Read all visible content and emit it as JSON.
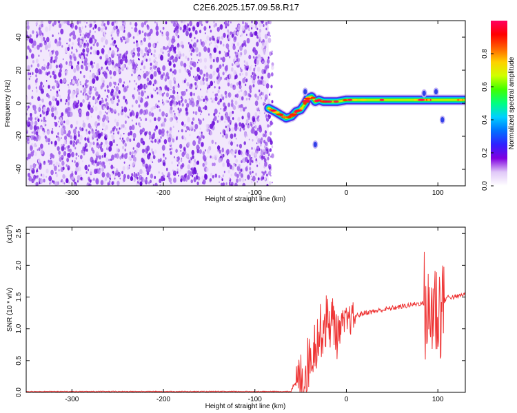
{
  "title": "C2E6.2025.157.09.58.R17",
  "chart_data": [
    {
      "type": "heatmap",
      "xlabel": "Height of straight line (km)",
      "ylabel": "Frequency (Hz)",
      "xlim": [
        -350,
        130
      ],
      "ylim": [
        -50,
        50
      ],
      "xticks": [
        -300,
        -200,
        -100,
        0,
        100
      ],
      "xtick_labels": [
        "-300",
        "-200",
        "-100",
        "0",
        "100"
      ],
      "yticks": [
        -40,
        -20,
        0,
        20,
        40
      ],
      "ytick_labels": [
        "-40",
        "-20",
        "0",
        "20",
        "40"
      ],
      "noise_region_x": [
        -350,
        -85
      ],
      "signal_ridge": [
        {
          "x": -85,
          "y": -3
        },
        {
          "x": -78,
          "y": -5
        },
        {
          "x": -72,
          "y": -7
        },
        {
          "x": -66,
          "y": -9
        },
        {
          "x": -60,
          "y": -8
        },
        {
          "x": -55,
          "y": -5
        },
        {
          "x": -50,
          "y": -4
        },
        {
          "x": -45,
          "y": 0
        },
        {
          "x": -42,
          "y": 3
        },
        {
          "x": -38,
          "y": 4
        },
        {
          "x": -34,
          "y": 1
        },
        {
          "x": -30,
          "y": 2
        },
        {
          "x": -25,
          "y": 1
        },
        {
          "x": -20,
          "y": 1
        },
        {
          "x": -10,
          "y": 1
        },
        {
          "x": 0,
          "y": 2
        },
        {
          "x": 20,
          "y": 2
        },
        {
          "x": 40,
          "y": 2
        },
        {
          "x": 60,
          "y": 2
        },
        {
          "x": 80,
          "y": 2
        },
        {
          "x": 100,
          "y": 2
        },
        {
          "x": 130,
          "y": 2
        }
      ],
      "isolated_blobs": [
        {
          "x": -45,
          "y": 7
        },
        {
          "x": -34,
          "y": -25
        },
        {
          "x": 85,
          "y": 6
        },
        {
          "x": 98,
          "y": 7
        },
        {
          "x": 105,
          "y": -10
        }
      ],
      "colorbar": {
        "label": "Normalized spectral amplitude",
        "range": [
          0,
          1
        ],
        "ticks": [
          0.0,
          0.2,
          0.4,
          0.6,
          0.8
        ],
        "tick_labels": [
          "0.0",
          "0.2",
          "0.4",
          "0.6",
          "0.8"
        ],
        "colormap": [
          "#ffffff",
          "#e0c8f8",
          "#8000e0",
          "#3020ff",
          "#0070ff",
          "#00d0ff",
          "#00ff80",
          "#40ff00",
          "#d0ff00",
          "#ffd000",
          "#ff6000",
          "#ff0000",
          "#ff0060"
        ]
      },
      "grid": false
    },
    {
      "type": "line",
      "xlabel": "Height of straight line (km)",
      "ylabel": "SNR (10 * v/v)",
      "y_multiplier_label": "(x10",
      "y_multiplier_exp": "4",
      "y_multiplier_close": ")",
      "xlim": [
        -350,
        130
      ],
      "ylim": [
        0,
        2.6
      ],
      "xticks": [
        -300,
        -200,
        -100,
        0,
        100
      ],
      "xtick_labels": [
        "-300",
        "-200",
        "-100",
        "0",
        "100"
      ],
      "yticks": [
        0.0,
        0.5,
        1.0,
        1.5,
        2.0,
        2.5
      ],
      "ytick_labels": [
        "0.0",
        "0.5",
        "1.0",
        "1.5",
        "2.0",
        "2.5"
      ],
      "series": [
        {
          "color": "#ee3333",
          "points": [
            {
              "x": -350,
              "y": 0.01
            },
            {
              "x": -200,
              "y": 0.01
            },
            {
              "x": -100,
              "y": 0.01
            },
            {
              "x": -65,
              "y": 0.02
            },
            {
              "x": -55,
              "y": 0.12
            },
            {
              "x": -45,
              "y": 0.3
            },
            {
              "x": -40,
              "y": 0.55
            },
            {
              "x": -35,
              "y": 0.75
            },
            {
              "x": -30,
              "y": 0.9
            },
            {
              "x": -25,
              "y": 1.05
            },
            {
              "x": -20,
              "y": 1.15
            },
            {
              "x": -15,
              "y": 1.1
            },
            {
              "x": -10,
              "y": 0.95
            },
            {
              "x": -5,
              "y": 1.05
            },
            {
              "x": 0,
              "y": 1.1
            },
            {
              "x": 10,
              "y": 1.2
            },
            {
              "x": 20,
              "y": 1.25
            },
            {
              "x": 40,
              "y": 1.3
            },
            {
              "x": 60,
              "y": 1.35
            },
            {
              "x": 80,
              "y": 1.4
            },
            {
              "x": 85,
              "y": 1.4
            },
            {
              "x": 90,
              "y": 1.1
            },
            {
              "x": 95,
              "y": 1.4
            },
            {
              "x": 100,
              "y": 1.25
            },
            {
              "x": 105,
              "y": 1.4
            },
            {
              "x": 110,
              "y": 1.5
            },
            {
              "x": 120,
              "y": 1.5
            },
            {
              "x": 130,
              "y": 1.55
            }
          ]
        }
      ],
      "noise_bands": [
        {
          "x0": -55,
          "x1": -10,
          "amp": 0.45
        },
        {
          "x0": -10,
          "x1": 10,
          "amp": 0.25
        },
        {
          "x0": 85,
          "x1": 107,
          "amp": 0.9
        }
      ],
      "grid": false
    }
  ]
}
